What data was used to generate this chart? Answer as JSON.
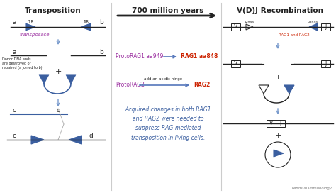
{
  "title_left": "Transposition",
  "title_mid": "700 million years",
  "title_right": "V(D)J Recombination",
  "blue": "#3b5fa0",
  "purple": "#9b2fa0",
  "red": "#cc2200",
  "dark": "#222222",
  "mid_blue": "#5577bb",
  "light_arrow": "#7799cc",
  "bg": "#ffffff",
  "footer": "Trends in Immunology",
  "divider": "#cccccc"
}
